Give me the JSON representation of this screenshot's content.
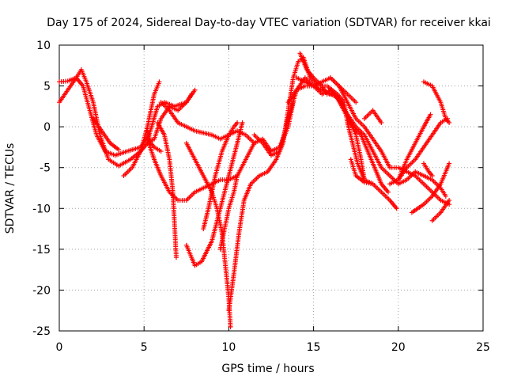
{
  "chart_data": {
    "type": "scatter",
    "title": "Day 175 of 2024, Sidereal Day-to-day VTEC variation (SDTVAR) for receiver kkai",
    "xlabel": "GPS time / hours",
    "ylabel": "SDTVAR / TECUs",
    "xlim": [
      0,
      25
    ],
    "ylim": [
      -25,
      10
    ],
    "xticks": [
      0,
      5,
      10,
      15,
      20,
      25
    ],
    "yticks": [
      -25,
      -20,
      -15,
      -10,
      -5,
      0,
      5,
      10
    ],
    "grid": true,
    "marker": "plus",
    "color": "#ff0000",
    "series": [
      {
        "name": "track-1",
        "points": [
          [
            0.0,
            5.5
          ],
          [
            0.5,
            5.6
          ],
          [
            1.0,
            6.0
          ],
          [
            1.4,
            5.0
          ],
          [
            1.8,
            2.0
          ],
          [
            2.2,
            -1.0
          ],
          [
            2.7,
            -3.0
          ],
          [
            3.3,
            -3.5
          ],
          [
            4.0,
            -3.0
          ],
          [
            4.8,
            -2.5
          ],
          [
            5.3,
            -1.0
          ],
          [
            5.8,
            2.5
          ],
          [
            6.2,
            3.0
          ],
          [
            6.8,
            2.5
          ],
          [
            7.5,
            3.0
          ],
          [
            8.0,
            4.5
          ]
        ]
      },
      {
        "name": "track-2",
        "points": [
          [
            0.0,
            3.0
          ],
          [
            0.5,
            4.5
          ],
          [
            1.0,
            6.0
          ],
          [
            1.3,
            7.0
          ],
          [
            1.6,
            5.5
          ],
          [
            2.0,
            3.0
          ],
          [
            2.4,
            -1.0
          ],
          [
            2.9,
            -4.0
          ],
          [
            3.5,
            -4.8
          ],
          [
            4.2,
            -4.0
          ],
          [
            4.8,
            -3.0
          ],
          [
            5.2,
            0.0
          ],
          [
            5.6,
            4.0
          ],
          [
            5.9,
            5.5
          ]
        ]
      },
      {
        "name": "track-3",
        "points": [
          [
            2.0,
            1.0
          ],
          [
            2.5,
            -0.5
          ],
          [
            3.0,
            -2.0
          ],
          [
            3.5,
            -2.8
          ]
        ]
      },
      {
        "name": "track-4",
        "points": [
          [
            3.8,
            -6.0
          ],
          [
            4.3,
            -5.0
          ],
          [
            4.8,
            -3.0
          ],
          [
            5.2,
            -2.0
          ],
          [
            5.6,
            -1.5
          ],
          [
            6.0,
            1.0
          ],
          [
            6.5,
            2.5
          ],
          [
            7.0,
            2.0
          ],
          [
            7.5,
            3.0
          ],
          [
            7.8,
            4.0
          ]
        ]
      },
      {
        "name": "track-5",
        "points": [
          [
            5.8,
            0.5
          ],
          [
            6.2,
            -1.0
          ],
          [
            6.5,
            -4.0
          ],
          [
            6.7,
            -8.0
          ],
          [
            6.8,
            -12.0
          ],
          [
            6.9,
            -16.0
          ]
        ]
      },
      {
        "name": "track-6",
        "points": [
          [
            5.2,
            -0.5
          ],
          [
            5.4,
            -2.0
          ],
          [
            5.6,
            -2.5
          ],
          [
            6.0,
            -3.0
          ]
        ]
      },
      {
        "name": "track-7",
        "points": [
          [
            6.0,
            3.0
          ],
          [
            6.5,
            2.0
          ],
          [
            7.0,
            0.5
          ],
          [
            7.5,
            0.0
          ],
          [
            8.0,
            -0.5
          ],
          [
            9.0,
            -1.0
          ],
          [
            9.5,
            -1.5
          ],
          [
            10.0,
            -1.0
          ],
          [
            10.5,
            -0.5
          ],
          [
            11.0,
            -1.0
          ],
          [
            11.5,
            -2.0
          ]
        ]
      },
      {
        "name": "track-8",
        "points": [
          [
            5.2,
            -1.5
          ],
          [
            5.6,
            -4.0
          ],
          [
            6.0,
            -6.0
          ],
          [
            6.5,
            -8.0
          ],
          [
            7.0,
            -9.0
          ],
          [
            7.5,
            -9.0
          ],
          [
            8.0,
            -8.0
          ],
          [
            8.5,
            -7.5
          ],
          [
            9.0,
            -7.0
          ],
          [
            9.5,
            -6.5
          ],
          [
            10.0,
            -6.5
          ],
          [
            10.5,
            -6.0
          ]
        ]
      },
      {
        "name": "track-9",
        "points": [
          [
            7.5,
            -2.0
          ],
          [
            8.0,
            -4.0
          ],
          [
            8.5,
            -6.0
          ],
          [
            9.0,
            -8.0
          ],
          [
            9.3,
            -10.0
          ],
          [
            9.6,
            -13.0
          ],
          [
            9.8,
            -17.0
          ],
          [
            10.0,
            -21.0
          ],
          [
            10.1,
            -24.5
          ]
        ]
      },
      {
        "name": "track-10",
        "points": [
          [
            7.5,
            -14.5
          ],
          [
            7.8,
            -16.0
          ],
          [
            8.0,
            -17.0
          ],
          [
            8.4,
            -16.5
          ],
          [
            9.0,
            -14.0
          ],
          [
            9.5,
            -10.0
          ],
          [
            10.0,
            -6.0
          ],
          [
            10.5,
            -2.0
          ],
          [
            10.8,
            0.5
          ]
        ]
      },
      {
        "name": "track-11",
        "points": [
          [
            8.5,
            -12.5
          ],
          [
            8.8,
            -10.0
          ],
          [
            9.2,
            -6.0
          ],
          [
            9.6,
            -3.0
          ],
          [
            10.0,
            -1.0
          ],
          [
            10.3,
            0.0
          ],
          [
            10.5,
            0.5
          ]
        ]
      },
      {
        "name": "track-12",
        "points": [
          [
            9.5,
            -15.0
          ],
          [
            9.8,
            -12.0
          ],
          [
            10.0,
            -10.0
          ],
          [
            10.3,
            -8.0
          ],
          [
            10.5,
            -6.0
          ]
        ]
      },
      {
        "name": "track-13",
        "points": [
          [
            10.0,
            -22.5
          ],
          [
            10.3,
            -18.0
          ],
          [
            10.6,
            -13.0
          ],
          [
            10.9,
            -9.0
          ],
          [
            11.3,
            -7.0
          ],
          [
            11.8,
            -6.0
          ],
          [
            12.3,
            -5.5
          ],
          [
            12.8,
            -4.0
          ],
          [
            13.2,
            -2.0
          ],
          [
            13.5,
            2.0
          ],
          [
            13.8,
            6.0
          ],
          [
            14.1,
            8.0
          ],
          [
            14.4,
            8.5
          ],
          [
            14.8,
            6.0
          ],
          [
            15.3,
            5.0
          ],
          [
            15.8,
            5.0
          ],
          [
            16.4,
            4.0
          ],
          [
            16.8,
            3.0
          ],
          [
            17.0,
            0.5
          ],
          [
            17.3,
            -2.0
          ],
          [
            17.6,
            -4.5
          ],
          [
            18.0,
            -6.5
          ],
          [
            18.5,
            -7.0
          ],
          [
            19.0,
            -8.0
          ],
          [
            19.5,
            -9.0
          ],
          [
            19.9,
            -10.0
          ]
        ]
      },
      {
        "name": "track-14",
        "points": [
          [
            10.5,
            -6.0
          ],
          [
            11.0,
            -4.0
          ],
          [
            11.5,
            -2.0
          ],
          [
            12.0,
            -1.5
          ],
          [
            12.5,
            -3.0
          ],
          [
            13.0,
            -2.5
          ],
          [
            13.5,
            0.0
          ],
          [
            13.8,
            3.0
          ]
        ]
      },
      {
        "name": "track-15",
        "points": [
          [
            11.5,
            -1.0
          ],
          [
            12.0,
            -2.0
          ],
          [
            12.5,
            -3.5
          ],
          [
            13.0,
            -3.0
          ],
          [
            13.5,
            1.0
          ],
          [
            14.0,
            4.5
          ],
          [
            14.5,
            6.0
          ],
          [
            15.0,
            5.0
          ],
          [
            15.5,
            4.5
          ],
          [
            16.0,
            4.0
          ],
          [
            16.5,
            3.5
          ],
          [
            17.0,
            1.5
          ],
          [
            17.5,
            0.0
          ],
          [
            18.0,
            -1.0
          ],
          [
            18.5,
            -3.0
          ],
          [
            19.0,
            -5.0
          ],
          [
            19.5,
            -6.0
          ],
          [
            20.0,
            -7.0
          ],
          [
            20.5,
            -6.5
          ],
          [
            21.0,
            -5.5
          ],
          [
            21.5,
            -6.0
          ],
          [
            22.0,
            -6.5
          ],
          [
            22.5,
            -7.5
          ],
          [
            22.8,
            -8.5
          ]
        ]
      },
      {
        "name": "track-16",
        "points": [
          [
            14.0,
            6.0
          ],
          [
            14.5,
            5.5
          ],
          [
            15.0,
            5.0
          ],
          [
            15.5,
            5.5
          ],
          [
            16.0,
            6.0
          ],
          [
            16.5,
            5.0
          ],
          [
            17.0,
            3.0
          ],
          [
            17.5,
            1.0
          ],
          [
            18.0,
            0.0
          ],
          [
            18.5,
            -1.5
          ],
          [
            19.0,
            -3.0
          ],
          [
            19.5,
            -5.0
          ],
          [
            20.0,
            -5.0
          ],
          [
            20.5,
            -5.5
          ],
          [
            21.0,
            -6.0
          ],
          [
            21.5,
            -7.0
          ],
          [
            22.0,
            -8.0
          ],
          [
            22.5,
            -9.0
          ],
          [
            23.0,
            -9.5
          ]
        ]
      },
      {
        "name": "track-17",
        "points": [
          [
            13.5,
            3.0
          ],
          [
            14.0,
            4.5
          ],
          [
            14.5,
            5.0
          ],
          [
            15.0,
            5.0
          ],
          [
            15.5,
            4.0
          ],
          [
            16.0,
            4.5
          ],
          [
            16.4,
            3.5
          ],
          [
            16.8,
            2.0
          ],
          [
            17.3,
            0.0
          ],
          [
            17.8,
            -1.0
          ],
          [
            18.2,
            -3.0
          ],
          [
            18.6,
            -5.0
          ],
          [
            19.0,
            -7.0
          ],
          [
            19.4,
            -8.0
          ]
        ]
      },
      {
        "name": "track-18",
        "points": [
          [
            14.2,
            9.0
          ],
          [
            14.6,
            7.0
          ],
          [
            15.0,
            6.0
          ],
          [
            15.5,
            5.0
          ],
          [
            15.8,
            4.0
          ],
          [
            16.2,
            4.0
          ],
          [
            16.6,
            3.0
          ],
          [
            17.0,
            1.5
          ],
          [
            17.5,
            -1.0
          ],
          [
            17.8,
            -4.0
          ],
          [
            18.0,
            -6.5
          ]
        ]
      },
      {
        "name": "track-19",
        "points": [
          [
            16.0,
            6.0
          ],
          [
            16.5,
            5.0
          ],
          [
            17.0,
            4.0
          ],
          [
            17.5,
            3.0
          ]
        ]
      },
      {
        "name": "track-20",
        "points": [
          [
            17.2,
            -4.0
          ],
          [
            17.5,
            -6.0
          ],
          [
            18.0,
            -6.8
          ],
          [
            18.5,
            -7.0
          ]
        ]
      },
      {
        "name": "track-21",
        "points": [
          [
            18.0,
            1.0
          ],
          [
            18.5,
            2.0
          ],
          [
            19.0,
            0.5
          ]
        ]
      },
      {
        "name": "track-22",
        "points": [
          [
            19.5,
            -7.0
          ],
          [
            20.0,
            -6.5
          ],
          [
            20.5,
            -5.0
          ],
          [
            21.0,
            -4.0
          ],
          [
            21.5,
            -2.5
          ],
          [
            22.0,
            -1.0
          ],
          [
            22.5,
            0.5
          ],
          [
            22.9,
            1.0
          ]
        ]
      },
      {
        "name": "track-23",
        "points": [
          [
            21.5,
            5.5
          ],
          [
            22.0,
            5.0
          ],
          [
            22.5,
            3.0
          ],
          [
            22.8,
            1.0
          ],
          [
            23.0,
            0.5
          ]
        ]
      },
      {
        "name": "track-24",
        "points": [
          [
            20.0,
            -6.5
          ],
          [
            20.5,
            -4.0
          ],
          [
            21.0,
            -2.0
          ],
          [
            21.5,
            0.0
          ],
          [
            21.9,
            1.5
          ]
        ]
      },
      {
        "name": "track-25",
        "points": [
          [
            20.8,
            -10.5
          ],
          [
            21.5,
            -9.5
          ],
          [
            22.0,
            -8.5
          ],
          [
            22.5,
            -7.0
          ],
          [
            23.0,
            -4.5
          ]
        ]
      },
      {
        "name": "track-26",
        "points": [
          [
            22.0,
            -11.5
          ],
          [
            22.5,
            -10.5
          ],
          [
            23.0,
            -9.0
          ]
        ]
      },
      {
        "name": "track-27",
        "points": [
          [
            21.5,
            -4.5
          ],
          [
            21.8,
            -5.5
          ],
          [
            22.0,
            -6.0
          ]
        ]
      }
    ]
  }
}
